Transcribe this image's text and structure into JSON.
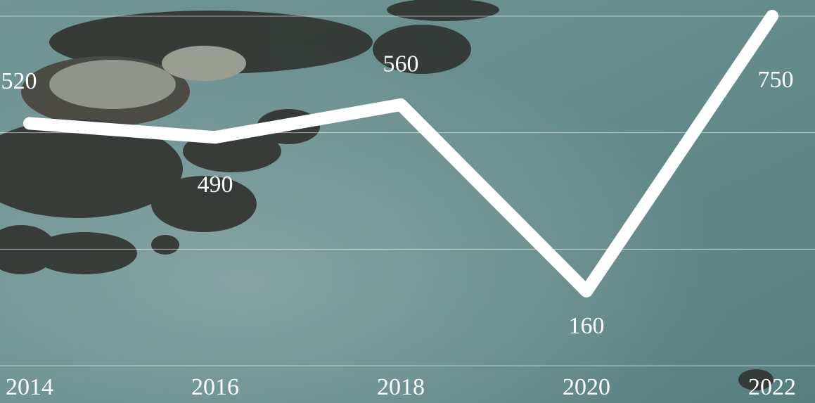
{
  "chart_data": {
    "type": "line",
    "categories": [
      "2014",
      "2016",
      "2018",
      "2020",
      "2022"
    ],
    "series": [
      {
        "color": "#ffffff",
        "values": [
          520,
          490,
          560,
          160,
          750
        ]
      }
    ],
    "ylim": [
      0,
      750
    ],
    "yticks": [
      0,
      250,
      500,
      750
    ],
    "grid": true
  }
}
